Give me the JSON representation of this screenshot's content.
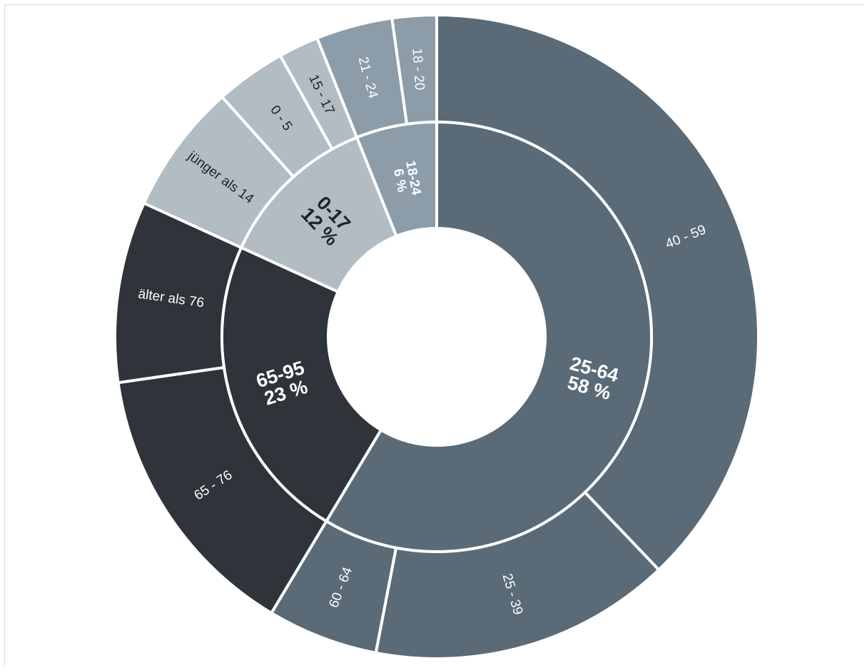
{
  "chart_data": {
    "type": "sunburst",
    "title": "",
    "unit": "%",
    "inner_ring": [
      {
        "label": "25-64",
        "value": 58,
        "percent_label": "58 %",
        "color": "#5a6b77",
        "text_color": "#ffffff"
      },
      {
        "label": "65-95",
        "value": 23,
        "percent_label": "23 %",
        "color": "#2e3439",
        "text_color": "#ffffff"
      },
      {
        "label": "0-17",
        "value": 12,
        "percent_label": "12 %",
        "color": "#b1bcc3",
        "text_color": "#1f2326"
      },
      {
        "label": "18-24",
        "value": 6,
        "percent_label": "6 %",
        "color": "#8c9ca8",
        "text_color": "#ffffff"
      }
    ],
    "outer_ring": [
      {
        "label": "40 - 59",
        "parent": "25-64",
        "value": 37.5,
        "color": "#5a6b77",
        "text_color": "#ffffff"
      },
      {
        "label": "25 - 39",
        "parent": "25-64",
        "value": 15,
        "color": "#5a6b77",
        "text_color": "#ffffff"
      },
      {
        "label": "60 - 64",
        "parent": "25-64",
        "value": 5.5,
        "color": "#5a6b77",
        "text_color": "#ffffff"
      },
      {
        "label": "65 - 76",
        "parent": "65-95",
        "value": 14,
        "color": "#2e3439",
        "text_color": "#ffffff"
      },
      {
        "label": "älter als 76",
        "parent": "65-95",
        "value": 9,
        "color": "#2e3439",
        "text_color": "#ffffff"
      },
      {
        "label": "jünger als 14",
        "parent": "0-17",
        "value": 6.5,
        "color": "#b1bcc3",
        "text_color": "#1f2326"
      },
      {
        "label": "0 - 5",
        "parent": "0-17",
        "value": 3.5,
        "color": "#b1bcc3",
        "text_color": "#1f2326"
      },
      {
        "label": "15 - 17",
        "parent": "0-17",
        "value": 2,
        "color": "#b1bcc3",
        "text_color": "#1f2326"
      },
      {
        "label": "21 - 24",
        "parent": "18-24",
        "value": 3.8,
        "color": "#8c9ca8",
        "text_color": "#ffffff"
      },
      {
        "label": "18 - 20",
        "parent": "18-24",
        "value": 2.2,
        "color": "#8c9ca8",
        "text_color": "#ffffff"
      }
    ],
    "start_angle_deg": 0,
    "direction": "clockwise"
  }
}
